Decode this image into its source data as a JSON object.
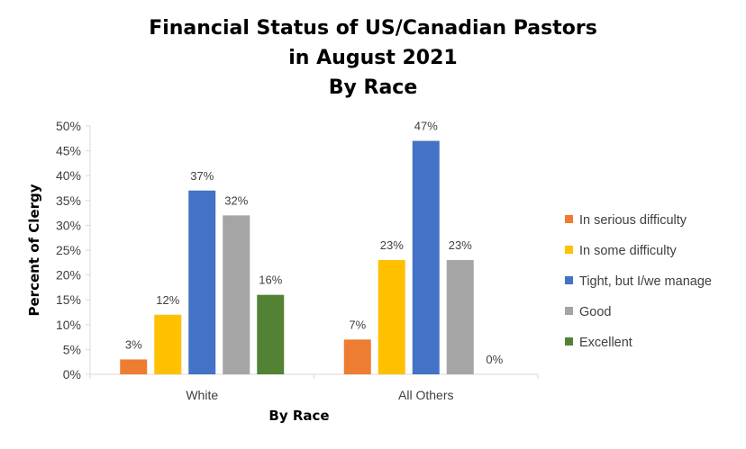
{
  "chart_data": {
    "type": "bar",
    "title_lines": [
      "Financial Status of US/Canadian Pastors",
      "in August 2021",
      "By Race"
    ],
    "xlabel": "By Race",
    "ylabel": "Percent  of Clergy",
    "categories": [
      "White",
      "All Others"
    ],
    "ylim": [
      0,
      50
    ],
    "yticks": [
      "0%",
      "5%",
      "10%",
      "15%",
      "20%",
      "25%",
      "30%",
      "35%",
      "40%",
      "45%",
      "50%"
    ],
    "grid": false,
    "legend_position": "right",
    "series": [
      {
        "name": "In serious difficulty",
        "color": "#ED7D31",
        "values": [
          3,
          7
        ],
        "labels": [
          "3%",
          "7%"
        ]
      },
      {
        "name": "In some difficulty",
        "color": "#FFC000",
        "values": [
          12,
          23
        ],
        "labels": [
          "12%",
          "23%"
        ]
      },
      {
        "name": "Tight, but I/we manage",
        "color": "#4472C4",
        "values": [
          37,
          47
        ],
        "labels": [
          "37%",
          "47%"
        ]
      },
      {
        "name": "Good",
        "color": "#A5A5A5",
        "values": [
          32,
          23
        ],
        "labels": [
          "32%",
          "23%"
        ]
      },
      {
        "name": "Excellent",
        "color": "#548235",
        "values": [
          16,
          0
        ],
        "labels": [
          "16%",
          "0%"
        ]
      }
    ]
  }
}
